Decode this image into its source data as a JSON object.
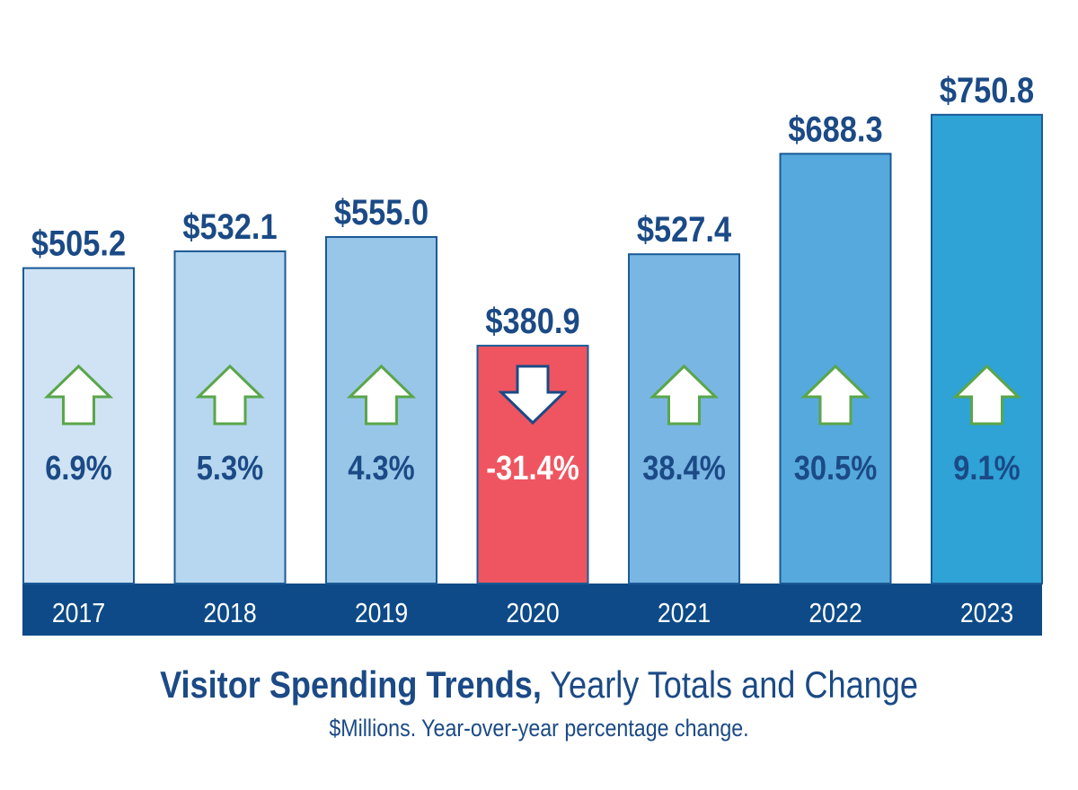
{
  "chart_data": {
    "type": "bar",
    "title_bold": "Visitor Spending Trends,",
    "title_rest": " Yearly Totals and Change",
    "subtitle": "$Millions. Year-over-year percentage change.",
    "categories": [
      "2017",
      "2018",
      "2019",
      "2020",
      "2021",
      "2022",
      "2023"
    ],
    "values": [
      505.2,
      532.1,
      555.0,
      380.9,
      527.4,
      688.3,
      750.8
    ],
    "value_labels": [
      "$505.2",
      "$532.1",
      "$555.0",
      "$380.9",
      "$527.4",
      "$688.3",
      "$750.8"
    ],
    "changes": [
      6.9,
      5.3,
      4.3,
      -31.4,
      38.4,
      30.5,
      9.1
    ],
    "change_labels": [
      "6.9%",
      "5.3%",
      "4.3%",
      "-31.4%",
      "38.4%",
      "30.5%",
      "9.1%"
    ],
    "bar_colors": [
      "#cfe3f4",
      "#b7d6ef",
      "#98c6e8",
      "#ef5560",
      "#79b6e3",
      "#56a9dc",
      "#2fa2d6"
    ],
    "colors": {
      "axis_band": "#0d4a87",
      "label_text": "#1b4a86",
      "bar_border": "#1b5a96",
      "up_arrow_stroke": "#5aa64a",
      "down_arrow_stroke": "#1b4a86",
      "negative_text": "#ffffff"
    }
  }
}
